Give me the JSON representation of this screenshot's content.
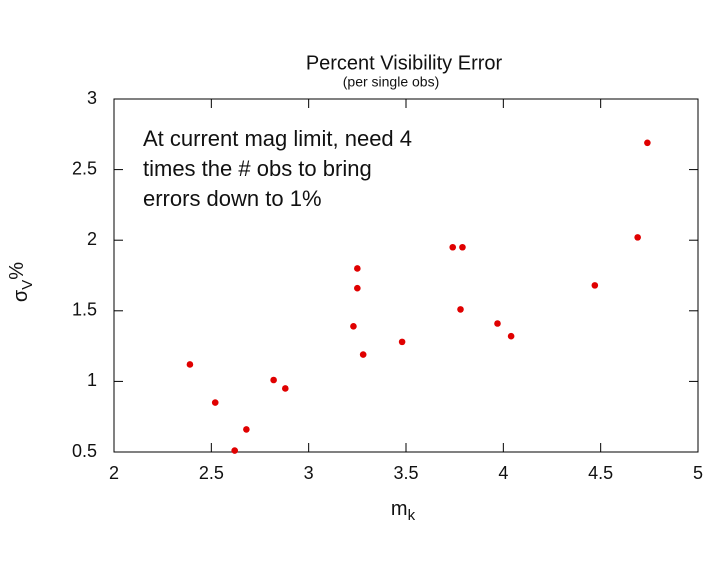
{
  "chart_data": {
    "type": "scatter",
    "title": "Percent Visibility Error",
    "subtitle": "(per single obs)",
    "annotation": [
      "At current mag limit, need 4",
      "times the # obs to bring",
      "errors down to 1%"
    ],
    "x_label": [
      "m",
      "k"
    ],
    "y_label": [
      "σ",
      "V",
      "%"
    ],
    "xlim": [
      2,
      5
    ],
    "ylim": [
      0.5,
      3
    ],
    "xticks": [
      2,
      2.5,
      3,
      3.5,
      4,
      4.5,
      5
    ],
    "yticks": [
      0.5,
      1,
      1.5,
      2,
      2.5,
      3
    ],
    "series": [
      {
        "color": "#e00000",
        "x": [
          2.39,
          2.52,
          2.62,
          2.68,
          2.82,
          2.88,
          3.23,
          3.25,
          3.25,
          3.28,
          3.48,
          3.74,
          3.79,
          3.78,
          3.97,
          4.04,
          4.47,
          4.69,
          4.74
        ],
        "values": [
          1.12,
          0.85,
          0.51,
          0.66,
          1.01,
          0.95,
          1.39,
          1.8,
          1.66,
          1.19,
          1.28,
          1.95,
          1.95,
          1.51,
          1.41,
          1.32,
          1.68,
          2.02,
          2.69
        ]
      }
    ]
  }
}
